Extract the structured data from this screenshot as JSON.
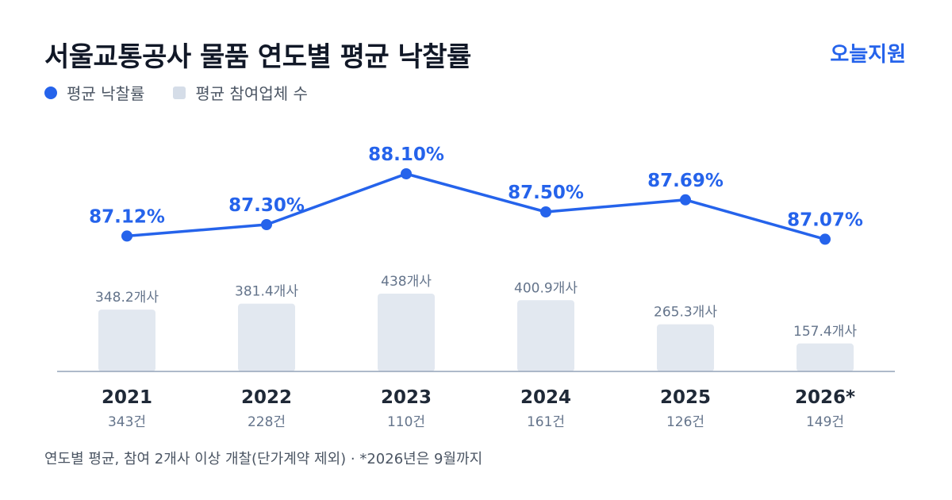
{
  "title": "서울교통공사 물품 연도별 평균 낙찰률",
  "brand": "오늘지원",
  "legend": {
    "rate_label": "평균 낙찰률",
    "bidders_label": "평균 참여업체 수"
  },
  "footnote": "연도별 평균, 참여 2개사 이상 개찰(단가계약 제외) · *2026년은 9월까지",
  "colors": {
    "line": "#2563eb",
    "bar": "#e2e8f0",
    "axis": "#94a3b8",
    "muted": "#64748b",
    "year": "#1f2937"
  },
  "chart_data": {
    "type": "bar",
    "categories": [
      "2021",
      "2022",
      "2023",
      "2024",
      "2025",
      "2026*"
    ],
    "series": [
      {
        "name": "평균 낙찰률",
        "type": "line",
        "values": [
          87.12,
          87.3,
          88.1,
          87.5,
          87.69,
          87.07
        ],
        "labels": [
          "87.12%",
          "87.30%",
          "88.10%",
          "87.50%",
          "87.69%",
          "87.07%"
        ]
      },
      {
        "name": "평균 참여업체 수",
        "type": "bar",
        "values": [
          348.2,
          381.4,
          438,
          400.9,
          265.3,
          157.4
        ],
        "labels": [
          "348.2개사",
          "381.4개사",
          "438개사",
          "400.9개사",
          "265.3개사",
          "157.4개사"
        ]
      }
    ],
    "counts": [
      "343건",
      "228건",
      "110건",
      "161건",
      "126건",
      "149건"
    ]
  }
}
